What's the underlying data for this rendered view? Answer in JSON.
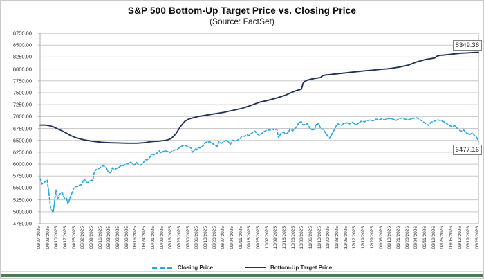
{
  "header": {
    "title": "S&P 500 Bottom-Up Target Price vs. Closing Price",
    "subtitle": "(Source: FactSet)"
  },
  "legend": {
    "closing_label": "Closing Price",
    "target_label": "Bottom-Up Target Price"
  },
  "annotations": {
    "target_end": "8349.36",
    "closing_end": "6477.16"
  },
  "colors": {
    "closing": "#29a8e0",
    "target": "#1f3356",
    "grid": "#c9c9c9",
    "frame": "#aeaeae",
    "footer_bar": "#4e7b52"
  },
  "chart_data": {
    "type": "line",
    "title": "S&P 500 Bottom-Up Target Price vs. Closing Price",
    "subtitle": "(Source: FactSet)",
    "xlabel": "",
    "ylabel": "",
    "ylim": [
      4750,
      8750
    ],
    "y_tick_step": 250,
    "grid": "horizontal",
    "legend_position": "bottom",
    "y_ticks": [
      "8750.00",
      "8500.00",
      "8250.00",
      "8000.00",
      "7750.00",
      "7500.00",
      "7250.00",
      "7000.00",
      "6750.00",
      "6500.00",
      "6250.00",
      "6000.00",
      "5750.00",
      "5500.00",
      "5250.00",
      "5000.00",
      "4750.00"
    ],
    "categories": [
      "03/27/2025",
      "04/03/2025",
      "04/10/2025",
      "04/17/2025",
      "04/25/2025",
      "05/02/2025",
      "05/09/2025",
      "05/16/2025",
      "05/23/2025",
      "06/02/2025",
      "06/09/2025",
      "06/16/2025",
      "06/24/2025",
      "07/01/2025",
      "07/09/2025",
      "07/16/2025",
      "07/23/2025",
      "07/30/2025",
      "08/06/2025",
      "08/13/2025",
      "08/20/2025",
      "08/27/2025",
      "09/04/2025",
      "09/11/2025",
      "09/18/2025",
      "09/25/2025",
      "10/02/2025",
      "10/09/2025",
      "10/16/2025",
      "10/23/2025",
      "10/30/2025",
      "11/06/2025",
      "11/13/2025",
      "11/20/2025",
      "11/28/2025",
      "12/05/2025",
      "12/12/2025",
      "12/19/2025",
      "12/29/2025",
      "01/06/2026",
      "01/13/2026",
      "01/21/2026",
      "01/28/2026",
      "02/04/2026",
      "02/11/2026",
      "02/19/2026",
      "02/26/2026",
      "03/05/2026",
      "03/12/2026",
      "03/19/2026",
      "03/26/2026"
    ],
    "series": [
      {
        "name": "Closing Price",
        "style": "dashed",
        "color_key": "closing",
        "end_label": "6477.16",
        "points": [
          [
            0,
            5693
          ],
          [
            0.2,
            5581
          ],
          [
            0.4,
            5612
          ],
          [
            0.6,
            5633
          ],
          [
            0.8,
            5671
          ],
          [
            1,
            5397
          ],
          [
            1.2,
            5074
          ],
          [
            1.5,
            4983
          ],
          [
            1.8,
            5457
          ],
          [
            2,
            5268
          ],
          [
            2.2,
            5363
          ],
          [
            2.5,
            5406
          ],
          [
            2.8,
            5276
          ],
          [
            3,
            5283
          ],
          [
            3.2,
            5158
          ],
          [
            3.4,
            5288
          ],
          [
            3.6,
            5376
          ],
          [
            3.8,
            5485
          ],
          [
            4,
            5525
          ],
          [
            4.25,
            5529
          ],
          [
            4.5,
            5561
          ],
          [
            4.75,
            5569
          ],
          [
            5,
            5687
          ],
          [
            5.2,
            5650
          ],
          [
            5.4,
            5607
          ],
          [
            5.6,
            5631
          ],
          [
            5.8,
            5663
          ],
          [
            6,
            5660
          ],
          [
            6.2,
            5844
          ],
          [
            6.4,
            5887
          ],
          [
            6.6,
            5893
          ],
          [
            6.8,
            5916
          ],
          [
            7,
            5958
          ],
          [
            7.25,
            5964
          ],
          [
            7.5,
            5940
          ],
          [
            7.75,
            5845
          ],
          [
            8,
            5803
          ],
          [
            8.25,
            5922
          ],
          [
            8.5,
            5888
          ],
          [
            8.75,
            5912
          ],
          [
            9,
            5936
          ],
          [
            9.25,
            5970
          ],
          [
            9.5,
            5971
          ],
          [
            9.75,
            6000
          ],
          [
            10,
            6006
          ],
          [
            10.25,
            6039
          ],
          [
            10.5,
            6022
          ],
          [
            10.75,
            5977
          ],
          [
            11,
            6033
          ],
          [
            11.25,
            5983
          ],
          [
            11.5,
            5981
          ],
          [
            11.75,
            6025
          ],
          [
            12,
            6092
          ],
          [
            12.25,
            6092
          ],
          [
            12.5,
            6141
          ],
          [
            12.75,
            6205
          ],
          [
            13,
            6198
          ],
          [
            13.3,
            6227
          ],
          [
            13.6,
            6279
          ],
          [
            13.8,
            6230
          ],
          [
            14,
            6263
          ],
          [
            14.3,
            6280
          ],
          [
            14.6,
            6260
          ],
          [
            14.8,
            6244
          ],
          [
            15,
            6264
          ],
          [
            15.3,
            6297
          ],
          [
            15.6,
            6305
          ],
          [
            16,
            6359
          ],
          [
            16.3,
            6389
          ],
          [
            16.6,
            6390
          ],
          [
            16.8,
            6371
          ],
          [
            17,
            6363
          ],
          [
            17.2,
            6339
          ],
          [
            17.4,
            6238
          ],
          [
            17.7,
            6330
          ],
          [
            17.85,
            6299
          ],
          [
            18,
            6345
          ],
          [
            18.3,
            6340
          ],
          [
            18.6,
            6389
          ],
          [
            18.8,
            6446
          ],
          [
            19,
            6467
          ],
          [
            19.3,
            6469
          ],
          [
            19.6,
            6450
          ],
          [
            19.8,
            6411
          ],
          [
            20,
            6395
          ],
          [
            20.2,
            6370
          ],
          [
            20.4,
            6467
          ],
          [
            20.7,
            6439
          ],
          [
            21,
            6481
          ],
          [
            21.3,
            6501
          ],
          [
            21.5,
            6460
          ],
          [
            21.7,
            6415
          ],
          [
            22,
            6502
          ],
          [
            22.3,
            6481
          ],
          [
            22.6,
            6513
          ],
          [
            22.8,
            6532
          ],
          [
            23,
            6587
          ],
          [
            23.3,
            6584
          ],
          [
            23.6,
            6615
          ],
          [
            23.8,
            6600
          ],
          [
            24,
            6632
          ],
          [
            24.25,
            6664
          ],
          [
            24.5,
            6694
          ],
          [
            24.75,
            6638
          ],
          [
            25,
            6605
          ],
          [
            25.3,
            6644
          ],
          [
            25.6,
            6689
          ],
          [
            25.8,
            6711
          ],
          [
            26,
            6715
          ],
          [
            26.3,
            6716
          ],
          [
            26.5,
            6740
          ],
          [
            26.7,
            6715
          ],
          [
            27,
            6735
          ],
          [
            27.2,
            6553
          ],
          [
            27.5,
            6655
          ],
          [
            27.8,
            6671
          ],
          [
            28,
            6629
          ],
          [
            28.3,
            6664
          ],
          [
            28.5,
            6736
          ],
          [
            28.8,
            6699
          ],
          [
            29,
            6739
          ],
          [
            29.3,
            6792
          ],
          [
            29.5,
            6875
          ],
          [
            29.8,
            6890
          ],
          [
            30,
            6822
          ],
          [
            30.3,
            6840
          ],
          [
            30.5,
            6852
          ],
          [
            30.7,
            6772
          ],
          [
            31,
            6720
          ],
          [
            31.3,
            6729
          ],
          [
            31.5,
            6833
          ],
          [
            31.8,
            6851
          ],
          [
            32,
            6737
          ],
          [
            32.3,
            6734
          ],
          [
            32.5,
            6672
          ],
          [
            32.7,
            6617
          ],
          [
            33,
            6539
          ],
          [
            33.2,
            6602
          ],
          [
            33.5,
            6705
          ],
          [
            33.8,
            6813
          ],
          [
            34,
            6849
          ],
          [
            34.3,
            6812
          ],
          [
            34.6,
            6850
          ],
          [
            35,
            6870
          ],
          [
            35.3,
            6846
          ],
          [
            35.6,
            6886
          ],
          [
            36,
            6827
          ],
          [
            36.3,
            6855
          ],
          [
            36.6,
            6900
          ],
          [
            37,
            6890
          ],
          [
            37.3,
            6915
          ],
          [
            37.6,
            6925
          ],
          [
            38,
            6912
          ],
          [
            38.3,
            6945
          ],
          [
            38.6,
            6930
          ],
          [
            39,
            6952
          ],
          [
            39.3,
            6930
          ],
          [
            39.6,
            6955
          ],
          [
            40,
            6960
          ],
          [
            40.3,
            6940
          ],
          [
            40.6,
            6920
          ],
          [
            41,
            6958
          ],
          [
            41.3,
            6968
          ],
          [
            41.6,
            6948
          ],
          [
            42,
            6928
          ],
          [
            42.3,
            6950
          ],
          [
            42.6,
            6965
          ],
          [
            43,
            6972
          ],
          [
            43.3,
            6938
          ],
          [
            43.6,
            6900
          ],
          [
            44,
            6852
          ],
          [
            44.3,
            6815
          ],
          [
            44.6,
            6880
          ],
          [
            45,
            6905
          ],
          [
            45.3,
            6932
          ],
          [
            45.6,
            6918
          ],
          [
            46,
            6895
          ],
          [
            46.3,
            6860
          ],
          [
            46.6,
            6820
          ],
          [
            47,
            6785
          ],
          [
            47.3,
            6810
          ],
          [
            47.6,
            6745
          ],
          [
            48,
            6690
          ],
          [
            48.3,
            6720
          ],
          [
            48.6,
            6660
          ],
          [
            49,
            6620
          ],
          [
            49.3,
            6655
          ],
          [
            49.6,
            6590
          ],
          [
            49.8,
            6560
          ],
          [
            50,
            6477.16
          ]
        ]
      },
      {
        "name": "Bottom-Up Target Price",
        "style": "solid",
        "color_key": "target",
        "end_label": "8349.36",
        "points": [
          [
            0,
            6820
          ],
          [
            0.5,
            6822
          ],
          [
            1,
            6810
          ],
          [
            1.5,
            6785
          ],
          [
            2,
            6740
          ],
          [
            2.5,
            6700
          ],
          [
            3,
            6650
          ],
          [
            3.5,
            6600
          ],
          [
            4,
            6560
          ],
          [
            4.5,
            6535
          ],
          [
            5,
            6510
          ],
          [
            5.5,
            6495
          ],
          [
            6,
            6480
          ],
          [
            6.5,
            6470
          ],
          [
            7,
            6460
          ],
          [
            7.5,
            6455
          ],
          [
            8,
            6450
          ],
          [
            8.5,
            6447
          ],
          [
            9,
            6445
          ],
          [
            9.5,
            6442
          ],
          [
            10,
            6440
          ],
          [
            10.5,
            6440
          ],
          [
            11,
            6440
          ],
          [
            11.5,
            6445
          ],
          [
            12,
            6452
          ],
          [
            12.5,
            6470
          ],
          [
            13,
            6478
          ],
          [
            13.5,
            6482
          ],
          [
            14,
            6492
          ],
          [
            14.5,
            6505
          ],
          [
            15,
            6545
          ],
          [
            15.5,
            6640
          ],
          [
            16,
            6790
          ],
          [
            16.5,
            6900
          ],
          [
            17,
            6950
          ],
          [
            17.5,
            6975
          ],
          [
            18,
            7000
          ],
          [
            18.5,
            7015
          ],
          [
            19,
            7030
          ],
          [
            19.5,
            7045
          ],
          [
            20,
            7060
          ],
          [
            20.5,
            7075
          ],
          [
            21,
            7090
          ],
          [
            21.5,
            7110
          ],
          [
            22,
            7130
          ],
          [
            22.5,
            7150
          ],
          [
            23,
            7170
          ],
          [
            23.5,
            7200
          ],
          [
            24,
            7230
          ],
          [
            24.5,
            7265
          ],
          [
            25,
            7300
          ],
          [
            25.5,
            7320
          ],
          [
            26,
            7340
          ],
          [
            26.5,
            7365
          ],
          [
            27,
            7390
          ],
          [
            27.5,
            7420
          ],
          [
            28,
            7450
          ],
          [
            28.5,
            7490
          ],
          [
            29,
            7530
          ],
          [
            29.5,
            7560
          ],
          [
            29.8,
            7575
          ],
          [
            30,
            7700
          ],
          [
            30.2,
            7740
          ],
          [
            30.5,
            7765
          ],
          [
            31,
            7790
          ],
          [
            31.5,
            7805
          ],
          [
            32,
            7820
          ],
          [
            32.2,
            7855
          ],
          [
            32.5,
            7870
          ],
          [
            33,
            7880
          ],
          [
            33.5,
            7890
          ],
          [
            34,
            7900
          ],
          [
            34.5,
            7910
          ],
          [
            35,
            7920
          ],
          [
            35.5,
            7930
          ],
          [
            36,
            7940
          ],
          [
            36.5,
            7950
          ],
          [
            37,
            7960
          ],
          [
            37.5,
            7968
          ],
          [
            38,
            7975
          ],
          [
            38.5,
            7985
          ],
          [
            39,
            7995
          ],
          [
            39.5,
            8000
          ],
          [
            40,
            8010
          ],
          [
            40.5,
            8025
          ],
          [
            41,
            8040
          ],
          [
            41.5,
            8060
          ],
          [
            42,
            8080
          ],
          [
            42.5,
            8115
          ],
          [
            43,
            8150
          ],
          [
            43.5,
            8175
          ],
          [
            44,
            8200
          ],
          [
            44.5,
            8215
          ],
          [
            45,
            8230
          ],
          [
            45.3,
            8270
          ],
          [
            45.6,
            8285
          ],
          [
            46,
            8290
          ],
          [
            46.5,
            8300
          ],
          [
            47,
            8310
          ],
          [
            47.5,
            8320
          ],
          [
            48,
            8330
          ],
          [
            48.5,
            8335
          ],
          [
            49,
            8340
          ],
          [
            49.5,
            8345
          ],
          [
            50,
            8349.36
          ]
        ]
      }
    ]
  }
}
